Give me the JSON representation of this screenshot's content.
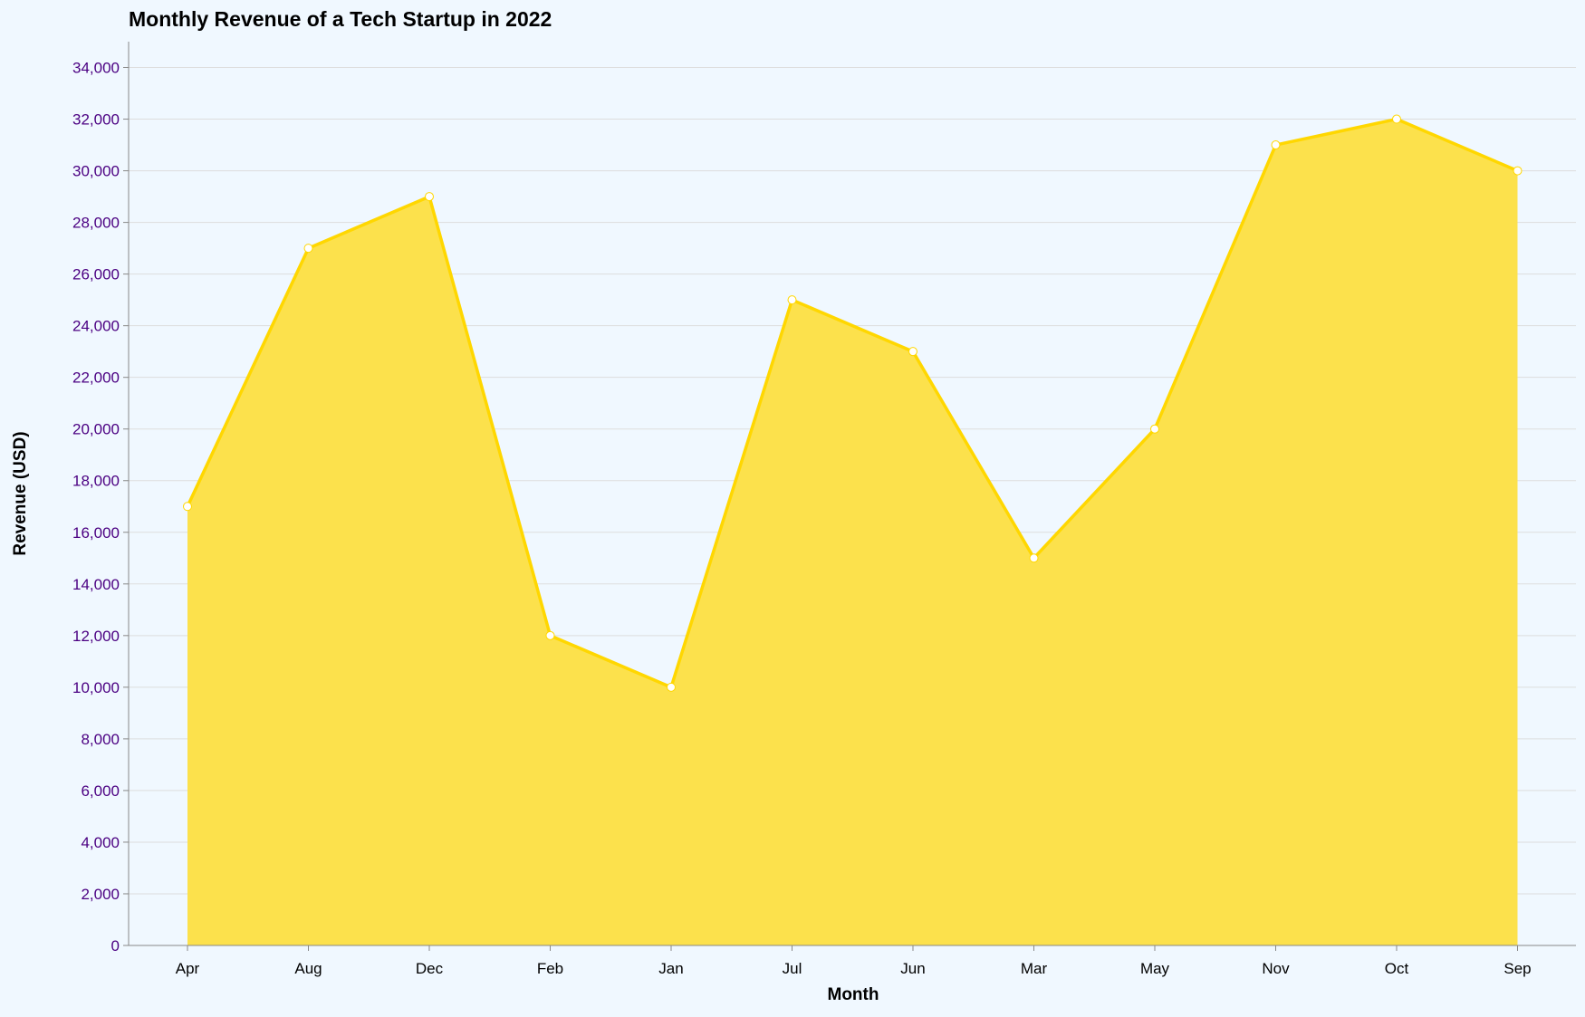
{
  "chart_data": {
    "type": "area",
    "title": "Monthly Revenue of a Tech Startup in 2022",
    "xlabel": "Month",
    "ylabel": "Revenue (USD)",
    "categories": [
      "Apr",
      "Aug",
      "Dec",
      "Feb",
      "Jan",
      "Jul",
      "Jun",
      "Mar",
      "May",
      "Nov",
      "Oct",
      "Sep"
    ],
    "values": [
      17000,
      27000,
      29000,
      12000,
      10000,
      25000,
      23000,
      15000,
      20000,
      31000,
      32000,
      30000
    ],
    "ylim": [
      0,
      35000
    ],
    "yticks": [
      0,
      2000,
      4000,
      6000,
      8000,
      10000,
      12000,
      14000,
      16000,
      18000,
      20000,
      22000,
      24000,
      26000,
      28000,
      30000,
      32000,
      34000
    ],
    "ytick_labels": [
      "0",
      "2,000",
      "4,000",
      "6,000",
      "8,000",
      "10,000",
      "12,000",
      "14,000",
      "16,000",
      "18,000",
      "20,000",
      "22,000",
      "24,000",
      "26,000",
      "28,000",
      "30,000",
      "32,000",
      "34,000"
    ],
    "grid": true,
    "legend": "none",
    "colors": {
      "area_fill": "#fce14c",
      "line": "#ffd700",
      "points": "#ffffff",
      "background": "#f0f8ff",
      "y_tick_text": "#4b0082"
    }
  }
}
